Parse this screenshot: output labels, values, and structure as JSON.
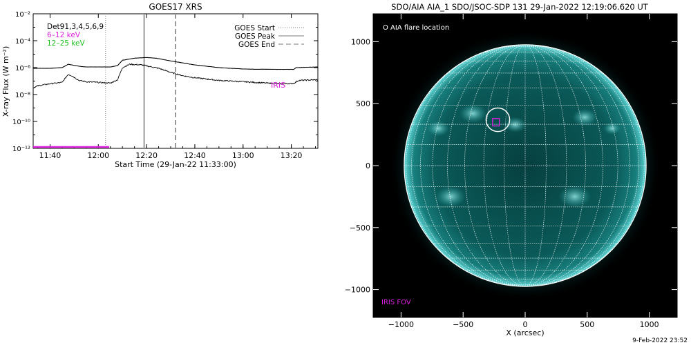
{
  "footer_timestamp": "9-Feb-2022 23:52",
  "chart_data": [
    {
      "type": "line",
      "title": "GOES17 XRS",
      "xlabel": "Start Time (29-Jan-22 11:33:00)",
      "ylabel": "X-ray Flux (W m⁻²)",
      "y_scale": "log",
      "ylim": [
        1e-12,
        0.01
      ],
      "y_ticks": [
        {
          "value": -12,
          "label": "10⁻¹²"
        },
        {
          "value": -10,
          "label": "10⁻¹⁰"
        },
        {
          "value": -8,
          "label": "10⁻⁸"
        },
        {
          "value": -6,
          "label": "10⁻⁶"
        },
        {
          "value": -4,
          "label": "10⁻⁴"
        },
        {
          "value": -2,
          "label": "10⁻²"
        }
      ],
      "xlim_minutes": [
        693,
        811
      ],
      "x_ticks": [
        {
          "minute": 700,
          "label": "11:40"
        },
        {
          "minute": 720,
          "label": "12:00"
        },
        {
          "minute": 740,
          "label": "12:20"
        },
        {
          "minute": 760,
          "label": "12:40"
        },
        {
          "minute": 780,
          "label": "13:00"
        },
        {
          "minute": 800,
          "label": "13:20"
        }
      ],
      "legend_left": [
        {
          "text": "Det91,3,4,5,6,9",
          "color": "#000000"
        },
        {
          "text": "6–12 keV",
          "color": "#e020e0"
        },
        {
          "text": "12–25 keV",
          "color": "#20c020"
        }
      ],
      "legend_right": [
        {
          "text": "GOES Start",
          "style": "dotted"
        },
        {
          "text": "GOES Peak",
          "style": "solid"
        },
        {
          "text": "GOES End",
          "style": "dashed"
        }
      ],
      "annotation": "IRIS",
      "vlines_minutes": {
        "start": 723,
        "peak": 739,
        "end": 752
      },
      "iris_bar_minutes": [
        693,
        724.5
      ],
      "iris_bar_log_value": -11.9,
      "series": [
        {
          "name": "long channel",
          "points": [
            [
              693,
              -6.05
            ],
            [
              700,
              -6.05
            ],
            [
              705,
              -6.0
            ],
            [
              707.5,
              -5.75
            ],
            [
              709,
              -5.8
            ],
            [
              712,
              -5.9
            ],
            [
              715,
              -5.95
            ],
            [
              720,
              -5.95
            ],
            [
              725,
              -5.95
            ],
            [
              728,
              -5.85
            ],
            [
              730,
              -5.45
            ],
            [
              735,
              -5.3
            ],
            [
              740,
              -5.25
            ],
            [
              744,
              -5.3
            ],
            [
              750,
              -5.5
            ],
            [
              755,
              -5.65
            ],
            [
              760,
              -5.8
            ],
            [
              765,
              -5.9
            ],
            [
              770,
              -6.0
            ],
            [
              775,
              -6.05
            ],
            [
              780,
              -6.1
            ],
            [
              785,
              -6.12
            ],
            [
              790,
              -6.12
            ],
            [
              795,
              -6.13
            ],
            [
              801,
              -6.13
            ],
            [
              802,
              -6.0
            ],
            [
              811,
              -5.95
            ]
          ]
        },
        {
          "name": "short channel",
          "points": [
            [
              693,
              -7.5
            ],
            [
              695,
              -7.35
            ],
            [
              700,
              -7.2
            ],
            [
              705,
              -7.1
            ],
            [
              707.5,
              -6.5
            ],
            [
              709,
              -6.6
            ],
            [
              712,
              -6.95
            ],
            [
              715,
              -7.05
            ],
            [
              720,
              -7.1
            ],
            [
              725,
              -7.15
            ],
            [
              728,
              -6.9
            ],
            [
              730,
              -6.0
            ],
            [
              733,
              -5.75
            ],
            [
              738,
              -5.8
            ],
            [
              745,
              -6.05
            ],
            [
              750,
              -6.35
            ],
            [
              755,
              -6.6
            ],
            [
              760,
              -6.75
            ],
            [
              765,
              -6.85
            ],
            [
              770,
              -6.95
            ],
            [
              780,
              -7.05
            ],
            [
              790,
              -7.15
            ],
            [
              795,
              -7.2
            ],
            [
              801,
              -7.18
            ],
            [
              803,
              -6.95
            ],
            [
              811,
              -6.9
            ]
          ]
        }
      ]
    },
    {
      "type": "image",
      "title": "SDO/AIA AIA_1 SDO/JSOC-SDP 131 29-Jan-2022 12:19:06.620 UT",
      "xlabel": "X (arcsec)",
      "ylabel": "",
      "xlim": [
        -1225,
        1225
      ],
      "ylim": [
        -1225,
        1225
      ],
      "x_ticks": [
        -1000,
        -500,
        0,
        500,
        1000
      ],
      "y_ticks": [
        -1000,
        -500,
        0,
        500,
        1000
      ],
      "x_tick_labels": [
        "−1000",
        "−500",
        "0",
        "500",
        "1000"
      ],
      "y_tick_labels": [
        "−1000",
        "−500",
        "0",
        "500",
        "1000"
      ],
      "legend_label": "O AIA flare location",
      "iris_label": "IRIS FOV",
      "flare_center": [
        -220,
        370
      ],
      "flare_circle_radius": 95,
      "iris_fov": [
        -235,
        350,
        55,
        60
      ],
      "solar_radius_arcsec": 975,
      "grid": "heliographic 10 deg",
      "colors": {
        "disk": "#0b6c6c",
        "limb": "#5fd6d6",
        "grid": "#ffffff",
        "iris": "#e020e0"
      }
    }
  ]
}
